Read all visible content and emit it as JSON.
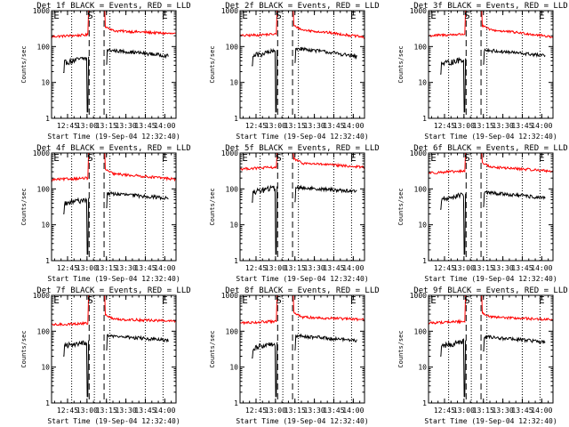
{
  "chart_data": {
    "type": "line",
    "layout": "3x3 grid of small-multiple panels",
    "ylabel": "Counts/sec",
    "xlabel": "Start Time (19-Sep-04 12:32:40)",
    "x_unit": "minutes since 12:32:40",
    "xlim": [
      0,
      96
    ],
    "ylim": [
      1,
      1000
    ],
    "y_scale": "log",
    "y_ticks": [
      {
        "label": "1",
        "value": 1
      },
      {
        "label": "10",
        "value": 10
      },
      {
        "label": "100",
        "value": 100
      },
      {
        "label": "1000",
        "value": 1000
      }
    ],
    "x_ticks": [
      {
        "label": "12:45",
        "value": 12.33
      },
      {
        "label": "13:00",
        "value": 27.33
      },
      {
        "label": "13:15",
        "value": 42.33
      },
      {
        "label": "13:30",
        "value": 57.33
      },
      {
        "label": "13:45",
        "value": 72.33
      },
      {
        "label": "14:00",
        "value": 87.33
      }
    ],
    "dotted_lines_x": [
      15.5,
      33.0,
      45.0,
      72.3,
      86.0
    ],
    "dashed_lines_x": [
      29.0,
      40.5
    ],
    "markers": [
      {
        "label": "E",
        "x": 1.5
      },
      {
        "label": "S",
        "x": 27.5
      },
      {
        "label": "E",
        "x": 85.0
      }
    ],
    "colors": {
      "events": "#000000",
      "lld": "#ff0000"
    },
    "legend": {
      "events": "BLACK = Events",
      "lld": "RED = LLD"
    },
    "panels": [
      {
        "title": "Det 1f BLACK = Events, RED = LLD",
        "lld_base": 190,
        "lld_end": 225,
        "ev_pre": 42,
        "ev_post": 80,
        "ev_end": 55
      },
      {
        "title": "Det 2f BLACK = Events, RED = LLD",
        "lld_base": 200,
        "lld_end": 180,
        "ev_pre": 65,
        "ev_post": 90,
        "ev_end": 52
      },
      {
        "title": "Det 3f BLACK = Events, RED = LLD",
        "lld_base": 200,
        "lld_end": 185,
        "ev_pre": 38,
        "ev_post": 80,
        "ev_end": 55
      },
      {
        "title": "Det 4f BLACK = Events, RED = LLD",
        "lld_base": 180,
        "lld_end": 185,
        "ev_pre": 45,
        "ev_post": 75,
        "ev_end": 55
      },
      {
        "title": "Det 5f BLACK = Events, RED = LLD",
        "lld_base": 360,
        "lld_end": 400,
        "ev_pre": 95,
        "ev_post": 110,
        "ev_end": 85
      },
      {
        "title": "Det 6f BLACK = Events, RED = LLD",
        "lld_base": 280,
        "lld_end": 310,
        "ev_pre": 60,
        "ev_post": 80,
        "ev_end": 55
      },
      {
        "title": "Det 7f BLACK = Events, RED = LLD",
        "lld_base": 150,
        "lld_end": 190,
        "ev_pre": 45,
        "ev_post": 75,
        "ev_end": 55
      },
      {
        "title": "Det 8f BLACK = Events, RED = LLD",
        "lld_base": 170,
        "lld_end": 210,
        "ev_pre": 40,
        "ev_post": 75,
        "ev_end": 55
      },
      {
        "title": "Det 9f BLACK = Events, RED = LLD",
        "lld_base": 170,
        "lld_end": 210,
        "ev_pre": 45,
        "ev_post": 70,
        "ev_end": 50
      }
    ]
  }
}
